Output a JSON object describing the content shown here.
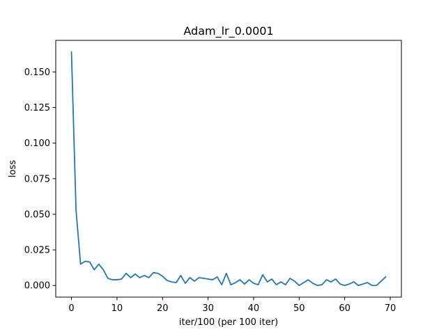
{
  "chart_data": {
    "type": "line",
    "title": "Adam_lr_0.0001",
    "xlabel": "iter/100 (per 100 iter)",
    "ylabel": "loss",
    "xlim": [
      -3.45,
      72.45
    ],
    "ylim": [
      -0.0082,
      0.1722
    ],
    "xticks": [
      0,
      10,
      20,
      30,
      40,
      50,
      60,
      70
    ],
    "xtick_labels": [
      "0",
      "10",
      "20",
      "30",
      "40",
      "50",
      "60",
      "70"
    ],
    "yticks": [
      0.0,
      0.025,
      0.05,
      0.075,
      0.1,
      0.125,
      0.15
    ],
    "ytick_labels": [
      "0.000",
      "0.025",
      "0.050",
      "0.075",
      "0.100",
      "0.125",
      "0.150"
    ],
    "grid": false,
    "colors": {
      "line": "#1f77b4"
    },
    "series": [
      {
        "x": [
          0,
          1,
          2,
          3,
          4,
          5,
          6,
          7,
          8,
          9,
          10,
          11,
          12,
          13,
          14,
          15,
          16,
          17,
          18,
          19,
          20,
          21,
          22,
          23,
          24,
          25,
          26,
          27,
          28,
          29,
          30,
          31,
          32,
          33,
          34,
          35,
          36,
          37,
          38,
          39,
          40,
          41,
          42,
          43,
          44,
          45,
          46,
          47,
          48,
          49,
          50,
          51,
          52,
          53,
          54,
          55,
          56,
          57,
          58,
          59,
          60,
          61,
          62,
          63,
          64,
          65,
          66,
          67,
          68,
          69
        ],
        "values": [
          0.164,
          0.053,
          0.015,
          0.017,
          0.0165,
          0.011,
          0.015,
          0.011,
          0.005,
          0.004,
          0.004,
          0.0045,
          0.0085,
          0.0055,
          0.008,
          0.0055,
          0.007,
          0.0055,
          0.009,
          0.0085,
          0.0065,
          0.0035,
          0.0025,
          0.002,
          0.007,
          0.0015,
          0.0055,
          0.003,
          0.0055,
          0.005,
          0.0045,
          0.004,
          0.006,
          0.0005,
          0.0085,
          0.0005,
          0.002,
          0.004,
          0.001,
          0.004,
          0.0015,
          0.0005,
          0.0075,
          0.0025,
          0.0045,
          0.0005,
          0.0025,
          0.0005,
          0.005,
          0.003,
          0.0,
          0.002,
          0.004,
          0.0015,
          0.0,
          0.0005,
          0.004,
          0.0025,
          0.0045,
          0.001,
          0.0,
          0.001,
          0.0025,
          0.0,
          0.001,
          0.002,
          0.0,
          0.0,
          0.003,
          0.006
        ]
      }
    ]
  }
}
